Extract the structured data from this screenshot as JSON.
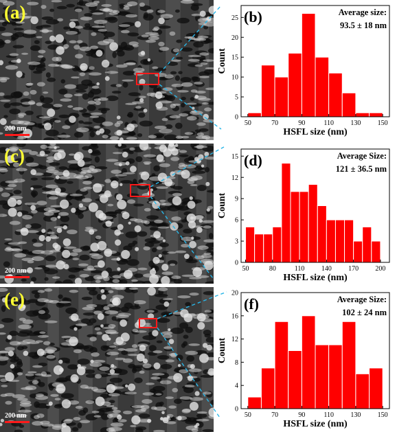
{
  "panels": [
    {
      "letter": "(a)",
      "scalebar": "200 nm"
    },
    {
      "letter": "(c)",
      "scalebar": "200 nm"
    },
    {
      "letter": "(e)",
      "scalebar": "200 nm"
    }
  ],
  "chart_data": [
    {
      "type": "bar",
      "panel_label": "(b)",
      "annotation_line1": "Average size:",
      "annotation_line2": "93.5 ± 18 nm",
      "xlabel": "HSFL size (nm)",
      "ylabel": "Count",
      "bin_width": 10,
      "x": [
        55,
        65,
        75,
        85,
        95,
        105,
        115,
        125,
        135,
        145
      ],
      "values": [
        1,
        13,
        10,
        16,
        26,
        15,
        11,
        6,
        1,
        1
      ],
      "xlim": [
        45,
        155
      ],
      "ylim": [
        0,
        28
      ],
      "xticks": [
        50,
        70,
        90,
        110,
        130,
        150
      ],
      "yticks": [
        0,
        5,
        10,
        15,
        20,
        25
      ],
      "bar_color": "#ff0000",
      "grid": false
    },
    {
      "type": "bar",
      "panel_label": "(d)",
      "annotation_line1": "Average Size:",
      "annotation_line2": "121 ± 36.5 nm",
      "xlabel": "HSFL size (nm)",
      "ylabel": "Count",
      "bin_width": 10,
      "x": [
        55,
        65,
        75,
        85,
        95,
        105,
        115,
        125,
        135,
        145,
        155,
        165,
        175,
        185,
        195
      ],
      "values": [
        5,
        4,
        4,
        5,
        14,
        10,
        10,
        11,
        8,
        6,
        6,
        6,
        3,
        5,
        3
      ],
      "xlim": [
        45,
        210
      ],
      "ylim": [
        0,
        16
      ],
      "xticks": [
        50,
        80,
        110,
        140,
        170,
        200
      ],
      "yticks": [
        0,
        3,
        6,
        9,
        12,
        15
      ],
      "bar_color": "#ff0000",
      "grid": false
    },
    {
      "type": "bar",
      "panel_label": "(f)",
      "annotation_line1": "Average Size:",
      "annotation_line2": "102 ± 24 nm",
      "xlabel": "HSFL size (nm)",
      "ylabel": "Count",
      "bin_width": 10,
      "x": [
        55,
        65,
        75,
        85,
        95,
        105,
        115,
        125,
        135,
        145
      ],
      "values": [
        2,
        7,
        15,
        10,
        16,
        11,
        11,
        15,
        6,
        7
      ],
      "xlim": [
        45,
        155
      ],
      "ylim": [
        0,
        20
      ],
      "xticks": [
        50,
        70,
        90,
        110,
        130,
        150
      ],
      "yticks": [
        0,
        4,
        8,
        12,
        16,
        20
      ],
      "bar_color": "#ff0000",
      "grid": false
    }
  ]
}
